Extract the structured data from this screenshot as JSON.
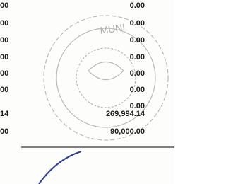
{
  "left_column": [
    "00",
    "00",
    "00",
    "00",
    "00",
    "00",
    "14",
    "00"
  ],
  "right_column": [
    "0.00",
    "0.00",
    "0.00",
    "0.00",
    "0.00",
    "0.00",
    "0.00",
    "269,994.14",
    "90,000.00"
  ],
  "stamp": {
    "text": "MUNI"
  }
}
